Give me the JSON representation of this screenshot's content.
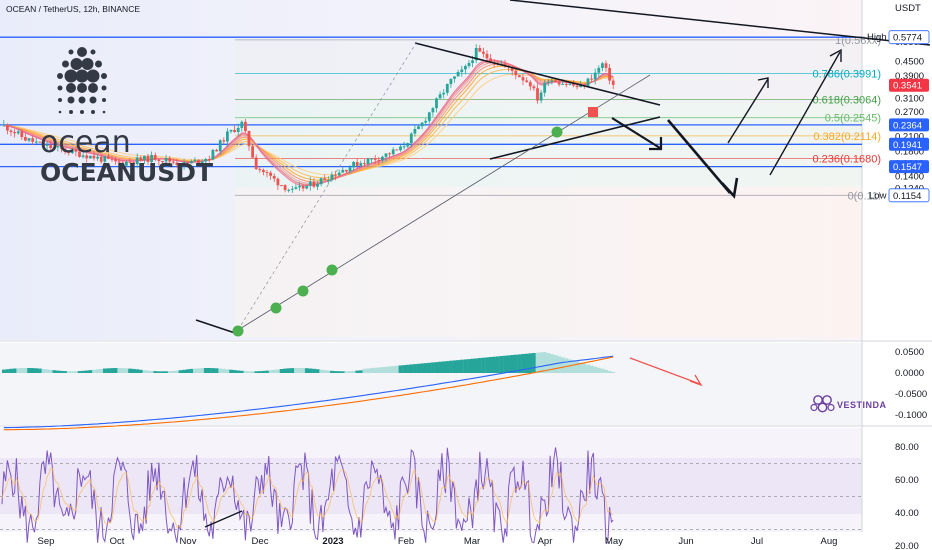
{
  "header": {
    "symbol_line": "OCEAN / TetherUS, 12h, BINANCE",
    "currency": "USDT"
  },
  "logo": {
    "word": "ocean",
    "ticker": "OCEANUSDT",
    "icon": "ocean-protocol-dots-icon"
  },
  "brand": {
    "name": "VESTINDA",
    "icon": "vestinda-hexagon-icon",
    "color": "#6b3fa0"
  },
  "colors": {
    "bull": "#26a69a",
    "bear": "#ef5350",
    "macd_line": "#2962ff",
    "signal_line": "#ff6d00",
    "hist": "#26a69a",
    "rsi_line": "#7e57c2",
    "support": "#2962ff",
    "marker": "#4caf50"
  },
  "chart_data": [
    {
      "type": "candlestick",
      "panel": "price",
      "interval": "12h",
      "yscale": "log",
      "ylim": [
        0.108,
        0.62
      ],
      "x_ticks": [
        "Sep",
        "Oct",
        "Nov",
        "Dec",
        "2023",
        "Feb",
        "Mar",
        "Apr",
        "May",
        "Jun",
        "Jul",
        "Aug"
      ],
      "y_ticks": [
        "0.5500",
        "0.4500",
        "0.3900",
        "0.3100",
        "0.2700",
        "0.2100",
        "0.1800",
        "0.1600",
        "0.1400",
        "0.1240"
      ],
      "price_badges": [
        {
          "label": "0.5774",
          "value": 0.5774,
          "style": "outline",
          "note": "High"
        },
        {
          "label": "0.3541",
          "value": 0.3541,
          "style": "red"
        },
        {
          "label": "0.2364",
          "value": 0.2364,
          "style": "blue"
        },
        {
          "label": "0.1941",
          "value": 0.1941,
          "style": "blue"
        },
        {
          "label": "0.1547",
          "value": 0.1547,
          "style": "blue"
        },
        {
          "label": "0.1154",
          "value": 0.1154,
          "style": "outline",
          "note": "Low"
        }
      ],
      "fib_levels": [
        {
          "label": "1(0.56xx)",
          "value": 0.562,
          "color": "#9598a1"
        },
        {
          "label": "0.786(0.3991)",
          "value": 0.3991,
          "color": "#00acc1"
        },
        {
          "label": "0.618(0.3064)",
          "value": 0.3064,
          "color": "#43a047"
        },
        {
          "label": "0.5(0.2545)",
          "value": 0.2545,
          "color": "#66bb6a"
        },
        {
          "label": "0.382(0.2114)",
          "value": 0.2114,
          "color": "#f9a825"
        },
        {
          "label": "0.236(0.1680)",
          "value": 0.168,
          "color": "#e53935"
        },
        {
          "label": "0(0.11!",
          "value": 0.1154,
          "color": "#9598a1"
        }
      ],
      "high_label": "High",
      "low_label": "Low",
      "support_lines": [
        0.2364,
        0.1941,
        0.1547
      ]
    },
    {
      "type": "line",
      "panel": "macd",
      "ylim": [
        -0.14,
        0.06
      ],
      "y_ticks": [
        "0.0500",
        "0.0000",
        "-0.0500",
        "-0.1000"
      ]
    },
    {
      "type": "line",
      "panel": "rsi",
      "ylim": [
        18,
        88
      ],
      "y_ticks": [
        "80.00",
        "60.00",
        "40.00",
        "20.00"
      ],
      "bands": [
        70,
        50,
        30
      ]
    }
  ]
}
